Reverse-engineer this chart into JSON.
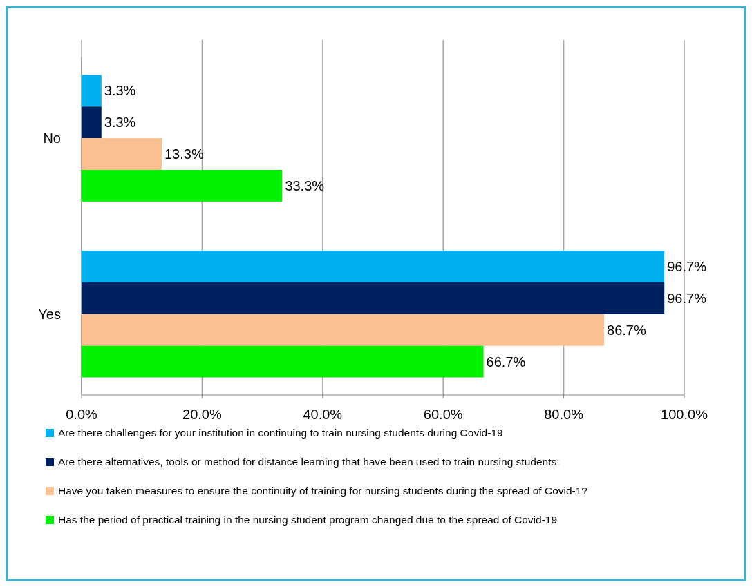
{
  "chart_data": {
    "type": "bar",
    "orientation": "horizontal",
    "categories": [
      "No",
      "Yes"
    ],
    "series": [
      {
        "name": "Are there challenges for your institution in continuing to train nursing students during Covid-19",
        "color": "#00b0f0",
        "values": [
          3.3,
          96.7
        ],
        "value_labels": [
          "3.3%",
          "96.7%"
        ]
      },
      {
        "name": "Are there alternatives, tools or method for distance learning that have been used to train nursing students:",
        "color": "#002060",
        "values": [
          3.3,
          96.7
        ],
        "value_labels": [
          "3.3%",
          "96.7%"
        ]
      },
      {
        "name": "Have you taken measures to ensure the continuity of training for nursing students during the spread of Covid-1?",
        "color": "#fac090",
        "values": [
          13.3,
          86.7
        ],
        "value_labels": [
          "13.3%",
          "86.7%"
        ]
      },
      {
        "name": "Has the period of practical training in the nursing student program changed due to the spread of Covid-19",
        "color": "#00f000",
        "values": [
          33.3,
          66.7
        ],
        "value_labels": [
          "33.3%",
          "66.7%"
        ]
      }
    ],
    "xlim": [
      0,
      100
    ],
    "xticks": [
      {
        "value": 0,
        "label": "0.0%"
      },
      {
        "value": 20,
        "label": "20.0%"
      },
      {
        "value": 40,
        "label": "40.0%"
      },
      {
        "value": 60,
        "label": "60.0%"
      },
      {
        "value": 80,
        "label": "80.0%"
      },
      {
        "value": 100,
        "label": "100.0%"
      }
    ],
    "grid": "x",
    "legend": "bottom"
  }
}
